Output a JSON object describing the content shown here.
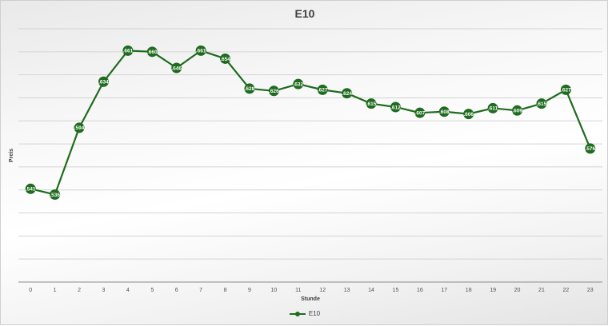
{
  "chart_data": {
    "type": "line",
    "title": "E10",
    "xlabel": "Stunde",
    "ylabel": "Preis",
    "categories": [
      "0",
      "1",
      "2",
      "3",
      "4",
      "5",
      "6",
      "7",
      "8",
      "9",
      "10",
      "11",
      "12",
      "13",
      "14",
      "15",
      "16",
      "17",
      "18",
      "19",
      "20",
      "21",
      "22",
      "23"
    ],
    "series": [
      {
        "name": "E10",
        "values": [
          1.541,
          1.536,
          1.594,
          1.634,
          1.661,
          1.66,
          1.646,
          1.661,
          1.654,
          1.628,
          1.626,
          1.632,
          1.627,
          1.624,
          1.615,
          1.612,
          1.607,
          1.608,
          1.606,
          1.611,
          1.609,
          1.615,
          1.627,
          1.576
        ],
        "labels": [
          ".541",
          ".536",
          ".594",
          ".634",
          ".661",
          ".660",
          ".646",
          ".661",
          ".654",
          ".628",
          ".626",
          ".632",
          ".627",
          ".624",
          ".615",
          ".612",
          ".607",
          ".608",
          ".606",
          ".611",
          ".609",
          ".615",
          ".627",
          ".576"
        ],
        "color": "#1f6b1f"
      }
    ],
    "ylim": [
      1.46,
      1.68
    ],
    "y_gridline_step": 0.02,
    "grid": true,
    "legend_position": "bottom"
  }
}
